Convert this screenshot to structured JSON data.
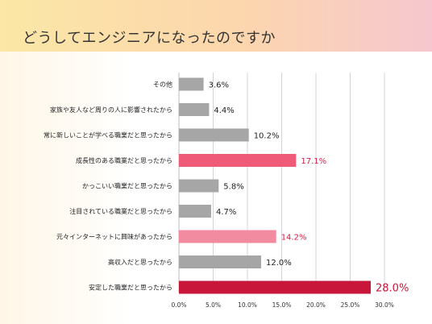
{
  "page": {
    "title": "どうしてエンジニアになったのですか",
    "header_colors": [
      "#fbe7a6",
      "#fcd6ad",
      "#f6c7cf"
    ]
  },
  "chart_data": {
    "type": "bar",
    "orientation": "horizontal",
    "title": "",
    "xlabel": "",
    "ylabel": "",
    "xlim": [
      0,
      30
    ],
    "x_ticks": [
      "0.0%",
      "5.0%",
      "10.0%",
      "15.0%",
      "20.0%",
      "25.0%",
      "30.0%"
    ],
    "grid": true,
    "categories": [
      "その他",
      "家族や友人など周りの人に影響されたから",
      "常に新しいことが学べる職業だと思ったから",
      "成長性のある職業だと思ったから",
      "かっこいい職業だと思ったから",
      "注目されている職業だと思ったから",
      "元々インターネットに興味があったから",
      "高収入だと思ったから",
      "安定した職業だと思ったから"
    ],
    "values": [
      3.6,
      4.4,
      10.2,
      17.1,
      5.8,
      4.7,
      14.2,
      12.0,
      28.0
    ],
    "value_labels": [
      "3.6%",
      "4.4%",
      "10.2%",
      "17.1%",
      "5.8%",
      "4.7%",
      "14.2%",
      "12.0%",
      "28.0%"
    ],
    "bar_colors": [
      "#a6a6a6",
      "#a6a6a6",
      "#a6a6a6",
      "#ef5a78",
      "#a6a6a6",
      "#a6a6a6",
      "#f28ba0",
      "#a6a6a6",
      "#c8163a"
    ],
    "label_colors": [
      "#222222",
      "#222222",
      "#222222",
      "#d81e44",
      "#222222",
      "#222222",
      "#d81e44",
      "#222222",
      "#c8163a"
    ]
  }
}
